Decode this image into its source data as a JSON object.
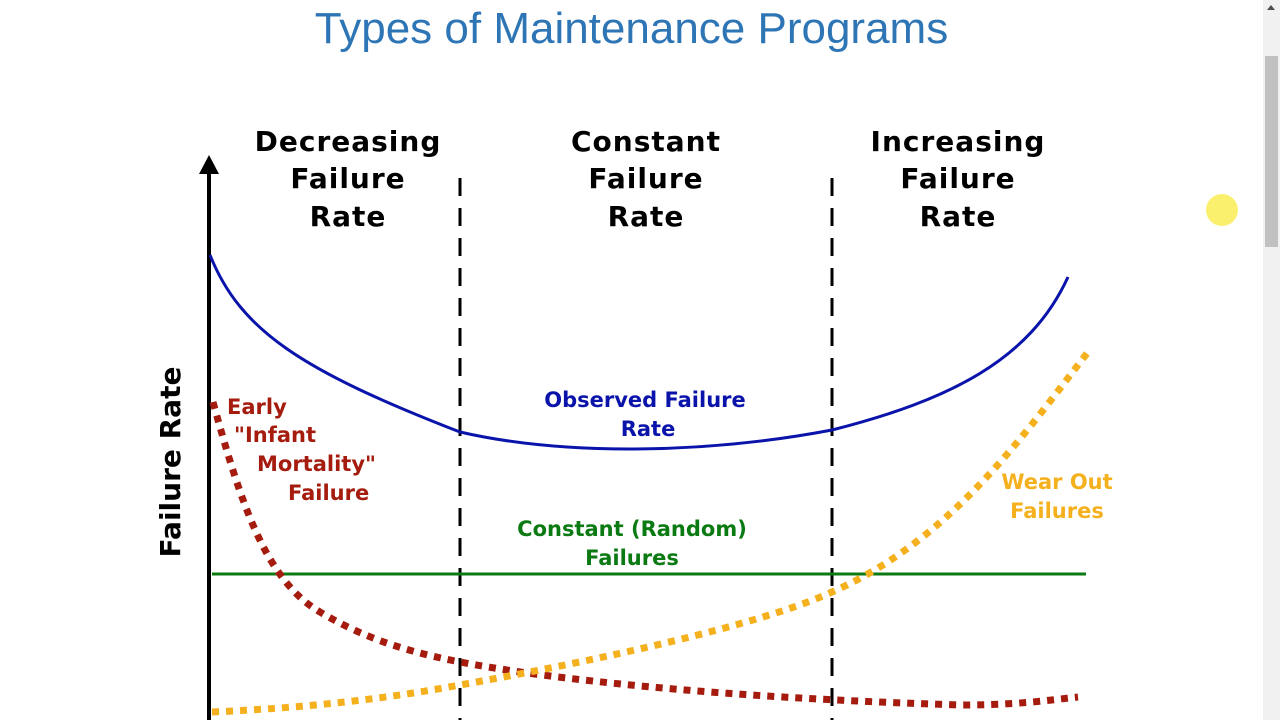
{
  "title": "Types of Maintenance Programs",
  "diagram": {
    "y_axis_label": "Failure Rate",
    "regions": [
      {
        "lines": [
          "Decreasing",
          "Failure",
          "Rate"
        ]
      },
      {
        "lines": [
          "Constant",
          "Failure",
          "Rate"
        ]
      },
      {
        "lines": [
          "Increasing",
          "Failure",
          "Rate"
        ]
      }
    ],
    "curves": {
      "observed": {
        "lines": [
          "Observed Failure",
          "Rate"
        ],
        "color": "#0a14aa"
      },
      "infant": {
        "lines": [
          "Early",
          "\"Infant",
          "Mortality\"",
          "Failure"
        ],
        "color": "#a51c0f"
      },
      "random": {
        "lines": [
          "Constant (Random)",
          "Failures"
        ],
        "color": "#0b7a12"
      },
      "wearout": {
        "lines": [
          "Wear Out",
          "Failures"
        ],
        "color": "#f5b01e"
      }
    }
  }
}
